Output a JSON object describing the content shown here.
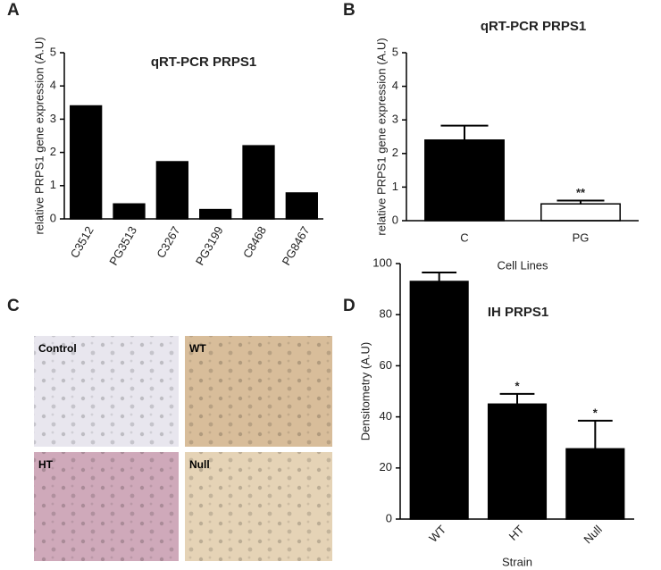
{
  "panel_letters": [
    "A",
    "B",
    "C",
    "D"
  ],
  "micrographs": {
    "labels": [
      "Control",
      "WT",
      "HT",
      "Null"
    ]
  },
  "chart_data": [
    {
      "type": "bar",
      "title": "qRT-PCR PRPS1",
      "y_label": "relative PRPS1 gene expression (A.U)",
      "categories": [
        "C3512",
        "PG3513",
        "C3267",
        "PG3199",
        "C8468",
        "PG8467"
      ],
      "values": [
        3.4,
        0.45,
        1.72,
        0.28,
        2.2,
        0.78
      ],
      "color": "#000000",
      "ylim": [
        0,
        5
      ],
      "yticks": [
        0,
        1,
        2,
        3,
        4,
        5
      ]
    },
    {
      "type": "bar",
      "title": "qRT-PCR PRPS1",
      "y_label": "relative PRPS1 gene expression (A.U)",
      "x_label": "Cell Lines",
      "categories": [
        "C",
        "PG"
      ],
      "values": [
        2.4,
        0.5
      ],
      "errors": [
        0.43,
        0.1
      ],
      "markers": [
        null,
        "**"
      ],
      "colors": [
        "#000000",
        "#ffffff"
      ],
      "ylim": [
        0,
        5
      ],
      "yticks": [
        0,
        1,
        2,
        3,
        4,
        5
      ]
    },
    {
      "type": "bar",
      "title": "IH PRPS1",
      "y_label": "Densitometry (A.U)",
      "x_label": "Strain",
      "categories": [
        "WT",
        "HT",
        "Null"
      ],
      "values": [
        93,
        45,
        27.5
      ],
      "errors": [
        3.5,
        4,
        11
      ],
      "markers": [
        null,
        "*",
        "*"
      ],
      "color": "#000000",
      "ylim": [
        0,
        100
      ],
      "yticks": [
        0,
        20,
        40,
        60,
        80,
        100
      ]
    }
  ]
}
